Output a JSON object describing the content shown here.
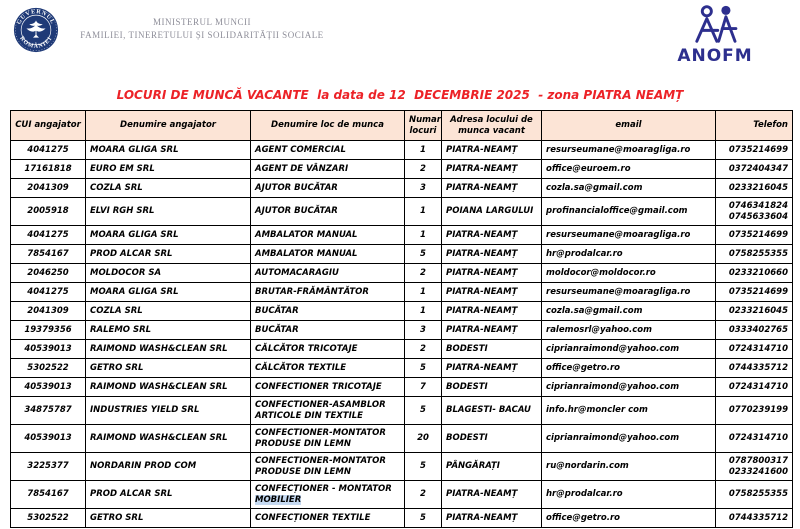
{
  "header": {
    "ministry_line1": "MINISTERUL MUNCII",
    "ministry_line2": "FAMILIEI, TINERETULUI ȘI SOLIDARITĂȚII SOCIALE",
    "seal_text_top": "GUVERNUL",
    "seal_text_bottom": "ROMÂNIEI",
    "anofm_label": "ANOFM"
  },
  "title": "LOCURI DE MUNCĂ VACANTE  la data de 12  DECEMBRIE 2025  - zona PIATRA NEAMȚ",
  "colors": {
    "title_red": "#ec2227",
    "table_header_bg": "#fce4d6",
    "anofm_navy": "#2d2f8e",
    "seal_navy": "#1f3a77",
    "highlight_blue": "#c5d9f1",
    "ministry_gray": "#8e8e99"
  },
  "table": {
    "columns": [
      "CUI angajator",
      "Denumire angajator",
      "Denumire loc de munca",
      "Numar locuri",
      "Adresa locului de munca vacant",
      "email",
      "Telefon"
    ],
    "rows": [
      {
        "cui": "4041275",
        "employer": "MOARA GLIGA SRL",
        "job": "AGENT COMERCIAL",
        "count": "1",
        "address": "PIATRA-NEAMȚ",
        "email": "resurseumane@moaragliga.ro",
        "phone": "0735214699"
      },
      {
        "cui": "17161818",
        "employer": "EURO EM SRL",
        "job": "AGENT DE VÂNZARI",
        "count": "2",
        "address": "PIATRA-NEAMȚ",
        "email": "office@euroem.ro",
        "phone": "0372404347"
      },
      {
        "cui": "2041309",
        "employer": "COZLA SRL",
        "job": "AJUTOR BUCĂTAR",
        "count": "3",
        "address": "PIATRA-NEAMȚ",
        "email": "cozla.sa@gmail.com",
        "phone": "0233216045"
      },
      {
        "cui": "2005918",
        "employer": "ELVI RGH SRL",
        "job": "AJUTOR BUCĂTAR",
        "count": "1",
        "address": "POIANA LARGULUI",
        "email": "profinancialoffice@gmail.com",
        "phone": "0746341824\n0745633604"
      },
      {
        "cui": "4041275",
        "employer": "MOARA GLIGA SRL",
        "job": "AMBALATOR MANUAL",
        "count": "1",
        "address": "PIATRA-NEAMȚ",
        "email": "resurseumane@moaragliga.ro",
        "phone": "0735214699"
      },
      {
        "cui": "7854167",
        "employer": "PROD ALCAR SRL",
        "job": "AMBALATOR MANUAL",
        "count": "5",
        "address": "PIATRA-NEAMȚ",
        "email": "hr@prodalcar.ro",
        "phone": "0758255355"
      },
      {
        "cui": "2046250",
        "employer": "MOLDOCOR SA",
        "job": "AUTOMACARAGIU",
        "count": "2",
        "address": "PIATRA-NEAMȚ",
        "email": "moldocor@moldocor.ro",
        "phone": "0233210660"
      },
      {
        "cui": "4041275",
        "employer": "MOARA GLIGA SRL",
        "job": "BRUTAR-FRĂMÂNTĂTOR",
        "count": "1",
        "address": "PIATRA-NEAMȚ",
        "email": "resurseumane@moaragliga.ro",
        "phone": "0735214699"
      },
      {
        "cui": "2041309",
        "employer": "COZLA SRL",
        "job": "BUCĂTAR",
        "count": "1",
        "address": "PIATRA-NEAMȚ",
        "email": "cozla.sa@gmail.com",
        "phone": "0233216045"
      },
      {
        "cui": "19379356",
        "employer": "RALEMO SRL",
        "job": "BUCĂTAR",
        "count": "3",
        "address": "PIATRA-NEAMȚ",
        "email": "ralemosrl@yahoo.com",
        "phone": "0333402765"
      },
      {
        "cui": "40539013",
        "employer": "RAIMOND WASH&CLEAN SRL",
        "job": "CĂLCĂTOR TRICOTAJE",
        "count": "2",
        "address": "BODESTI",
        "email": "ciprianraimond@yahoo.com",
        "phone": "0724314710"
      },
      {
        "cui": "5302522",
        "employer": "GETRO SRL",
        "job": "CĂLCĂTOR TEXTILE",
        "count": "5",
        "address": "PIATRA-NEAMȚ",
        "email": "office@getro.ro",
        "phone": "0744335712"
      },
      {
        "cui": "40539013",
        "employer": "RAIMOND WASH&CLEAN SRL",
        "job": "CONFECTIONER TRICOTAJE",
        "count": "7",
        "address": "BODESTI",
        "email": "ciprianraimond@yahoo.com",
        "phone": "0724314710"
      },
      {
        "cui": "34875787",
        "employer": "INDUSTRIES YIELD SRL",
        "job": "CONFECTIONER-ASAMBLOR\nARTICOLE DIN TEXTILE",
        "count": "5",
        "address": "BLAGESTI- BACAU",
        "email": "info.hr@moncler com",
        "phone": "0770239199"
      },
      {
        "cui": "40539013",
        "employer": "RAIMOND WASH&CLEAN SRL",
        "job": "CONFECTIONER-MONTATOR\nPRODUSE DIN LEMN",
        "count": "20",
        "address": "BODESTI",
        "email": "ciprianraimond@yahoo.com",
        "phone": "0724314710"
      },
      {
        "cui": "3225377",
        "employer": "NORDARIN PROD COM",
        "job": "CONFECTIONER-MONTATOR\nPRODUSE DIN LEMN",
        "count": "5",
        "address": "PÂNGĂRAȚI",
        "email": "ru@nordarin.com",
        "phone": "0787800317\n0233241600"
      },
      {
        "cui": "7854167",
        "employer": "PROD ALCAR SRL",
        "job": "CONFECȚIONER - MONTATOR\nMOBILIER",
        "count": "2",
        "address": "PIATRA-NEAMȚ",
        "email": "hr@prodalcar.ro",
        "phone": "0758255355",
        "job_highlight": "MOBILIER"
      },
      {
        "cui": "5302522",
        "employer": "GETRO SRL",
        "job": "CONFECȚIONER TEXTILE",
        "count": "5",
        "address": "PIATRA-NEAMȚ",
        "email": "office@getro.ro",
        "phone": "0744335712"
      }
    ]
  }
}
